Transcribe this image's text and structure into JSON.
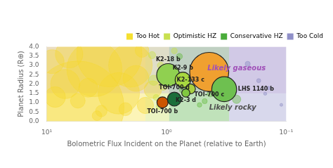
{
  "chart_data": {
    "type": "bubble",
    "xlabel": "Bolometric Flux Incident on the Planet (relative to Earth)",
    "ylabel": "Planet Radius (R⊕)",
    "log": "x",
    "xlim": [
      10,
      0.1
    ],
    "xticks": [
      {
        "value": 0.1,
        "label": "10⁻¹"
      },
      {
        "value": 1,
        "label": "10⁰"
      },
      {
        "value": 10,
        "label": "10¹"
      }
    ],
    "ylim": [
      0.0,
      4.0
    ],
    "yticks": [
      {
        "value": 0,
        "label": "0.0"
      },
      0.5,
      {
        "value": 1,
        "label": "1.0"
      },
      1.5,
      {
        "value": 2,
        "label": "2.0"
      },
      2.5,
      {
        "value": 3,
        "label": "3.0"
      },
      3.5,
      {
        "value": 4,
        "label": "4.0"
      }
    ],
    "grid": false,
    "legend": "upper right",
    "zones": [
      {
        "label": "Too Hot",
        "color": "#f5e030",
        "x": [
          10,
          1.5
        ]
      },
      {
        "label": "Optimistic HZ",
        "color": "#c8e050",
        "x": [
          1.5,
          0.95
        ]
      },
      {
        "label": "Conservative HZ",
        "color": "#4aac3a",
        "x": [
          0.95,
          0.3
        ]
      },
      {
        "label": "Too Cold",
        "color": "#9090c8",
        "x": [
          0.3,
          0.1
        ]
      }
    ],
    "shaded_band": {
      "x": [
        0.1,
        10.0
      ],
      "y": [
        1.5,
        4.0
      ],
      "color": "#c0a0d8"
    },
    "series": [
      {
        "color": "#f5d830",
        "values": [
          {
            "x": 5.5,
            "y": 0.75,
            "size": 9000
          },
          {
            "x": 3.0,
            "y": 3.6,
            "size": 4500
          },
          {
            "x": 4.0,
            "y": 2.8,
            "size": 3200
          },
          {
            "x": 2.0,
            "y": 3.0,
            "size": 2000
          },
          {
            "x": 2.5,
            "y": 1.5,
            "size": 1800
          },
          {
            "x": 7.0,
            "y": 2.0,
            "size": 900
          },
          {
            "x": 1.8,
            "y": 2.3,
            "size": 700
          },
          {
            "x": 6.5,
            "y": 3.6,
            "size": 800
          },
          {
            "x": 8.5,
            "y": 1.3,
            "size": 450
          },
          {
            "x": 4.5,
            "y": 1.8,
            "size": 380
          },
          {
            "x": 1.5,
            "y": 0.85,
            "size": 280
          },
          {
            "x": 2.2,
            "y": 0.65,
            "size": 180
          },
          {
            "x": 3.5,
            "y": 0.55,
            "size": 140
          },
          {
            "x": 5.5,
            "y": 1.1,
            "size": 230
          },
          {
            "x": 1.3,
            "y": 1.7,
            "size": 320
          },
          {
            "x": 9.0,
            "y": 3.2,
            "size": 600
          },
          {
            "x": 3.8,
            "y": 0.3,
            "size": 100
          },
          {
            "x": 1.6,
            "y": 3.8,
            "size": 200
          }
        ]
      },
      {
        "color": "#c8e040",
        "values": [
          {
            "x": 1.32,
            "y": 3.55,
            "size": 55
          },
          {
            "x": 1.12,
            "y": 3.0,
            "size": 45
          },
          {
            "x": 1.28,
            "y": 2.2,
            "size": 110
          },
          {
            "x": 1.06,
            "y": 1.88,
            "size": 70
          },
          {
            "x": 1.22,
            "y": 1.28,
            "size": 35
          },
          {
            "x": 1.16,
            "y": 0.78,
            "size": 28
          },
          {
            "x": 0.86,
            "y": 3.78,
            "size": 35
          },
          {
            "x": 0.94,
            "y": 2.82,
            "size": 45
          }
        ]
      },
      {
        "color": "#60b838",
        "values": [
          {
            "x": 0.78,
            "y": 3.48,
            "size": 38
          },
          {
            "x": 0.68,
            "y": 2.0,
            "size": 45
          },
          {
            "x": 0.58,
            "y": 2.98,
            "size": 38
          },
          {
            "x": 0.48,
            "y": 1.08,
            "size": 28
          },
          {
            "x": 0.38,
            "y": 2.48,
            "size": 38
          },
          {
            "x": 0.34,
            "y": 3.18,
            "size": 32
          },
          {
            "x": 0.43,
            "y": 1.48,
            "size": 42
          },
          {
            "x": 0.53,
            "y": 0.88,
            "size": 22
          },
          {
            "x": 0.73,
            "y": 1.68,
            "size": 50
          },
          {
            "x": 0.26,
            "y": 1.18,
            "size": 75
          }
        ]
      },
      {
        "color": "#8888c0",
        "values": [
          {
            "x": 0.21,
            "y": 3.08,
            "size": 28
          },
          {
            "x": 0.17,
            "y": 2.18,
            "size": 18
          },
          {
            "x": 0.14,
            "y": 1.78,
            "size": 13
          },
          {
            "x": 0.11,
            "y": 0.88,
            "size": 9
          },
          {
            "x": 0.19,
            "y": 0.68,
            "size": 7
          },
          {
            "x": 0.15,
            "y": 1.48,
            "size": 11
          }
        ]
      },
      {
        "colors": [
          "#cc5500",
          "#f0a030",
          "#1a6e3a",
          "#90d050",
          "#a8d840",
          "#a8d040",
          "#80c840",
          "#6ec050"
        ],
        "labels": [
          "TOI-700 b",
          "TOI-700 c",
          "TOI-700 d",
          "K2-18 b",
          "K2-9 b",
          "K2-133 c",
          "K2-3 d",
          "LHS 1140 b"
        ],
        "values": [
          {
            "x": 1.08,
            "y": 1.01,
            "size": 130
          },
          {
            "x": 0.44,
            "y": 2.65,
            "size": 1600
          },
          {
            "x": 0.86,
            "y": 1.19,
            "size": 200
          },
          {
            "x": 0.97,
            "y": 2.48,
            "size": 550
          },
          {
            "x": 0.73,
            "y": 2.22,
            "size": 250
          },
          {
            "x": 0.63,
            "y": 1.74,
            "size": 100
          },
          {
            "x": 0.69,
            "y": 1.52,
            "size": 70
          },
          {
            "x": 0.33,
            "y": 1.72,
            "size": 650
          }
        ]
      }
    ],
    "annotations": [
      {
        "text": "Likely gaseous",
        "x": 0.26,
        "y": 2.82,
        "color": "#a050b8"
      },
      {
        "text": "Likely rocky",
        "x": 0.28,
        "y": 0.7,
        "color": "#505050"
      }
    ]
  }
}
